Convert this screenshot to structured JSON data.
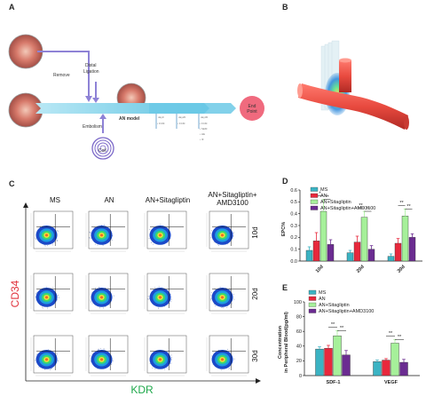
{
  "panels": {
    "a": "A",
    "b": "B",
    "c": "C",
    "d": "D",
    "e": "E"
  },
  "panel_a": {
    "remove": "Remove",
    "distal": "Distal",
    "ligation": "Ligation",
    "embolism": "Embolism",
    "coil": "Coil",
    "an_model": "AN model",
    "end": "End",
    "point": "Point",
    "day0": "day0",
    "day20": "day20",
    "day30": "day30",
    "d0_items": [
      "FCM"
    ],
    "d20_items": [
      "FCM"
    ],
    "d30_items": [
      "FCM",
      "SEM",
      "HE",
      "IF"
    ],
    "colors": {
      "arrow": "#7FD0E8",
      "end": "#F06A7E",
      "coil": "#7B68C8"
    }
  },
  "panel_c": {
    "cols": [
      "MS",
      "AN",
      "AN+Sitagliptin",
      "AN+Sitagliptin+\nAMD3100"
    ],
    "col4_line1": "AN+Sitagliptin+",
    "col4_line2": "AMD3100",
    "rows": [
      "10d",
      "20d",
      "30d"
    ],
    "ylabel": "CD34",
    "xlabel": "KDR",
    "colors": {
      "ylabel": "#E0303A",
      "xlabel": "#1EA84A"
    }
  },
  "chart_data": [
    {
      "type": "bar",
      "ylabel": "EPC%",
      "ylim": [
        0,
        0.6
      ],
      "yticks": [
        "0.0",
        "0.1",
        "0.2",
        "0.3",
        "0.4",
        "0.5",
        "0.6"
      ],
      "categories": [
        "10d",
        "20d",
        "30d"
      ],
      "series": [
        {
          "name": "MS",
          "color": "#3BB3C3",
          "values": [
            0.09,
            0.07,
            0.04
          ],
          "err": [
            0.03,
            0.02,
            0.02
          ]
        },
        {
          "name": "AN",
          "color": "#E8283C",
          "values": [
            0.17,
            0.16,
            0.15
          ],
          "err": [
            0.07,
            0.05,
            0.04
          ]
        },
        {
          "name": "AN+Sitagliptin",
          "color": "#A6F09A",
          "values": [
            0.42,
            0.37,
            0.38
          ],
          "err": [
            0.1,
            0.05,
            0.06
          ]
        },
        {
          "name": "AN+Sitagliptin+AMD3100",
          "color": "#6B2C91",
          "values": [
            0.14,
            0.1,
            0.2
          ],
          "err": [
            0.04,
            0.03,
            0.03
          ]
        }
      ],
      "sig": [
        {
          "cat": 0,
          "from": 1,
          "to": 2,
          "label": "*"
        },
        {
          "cat": 0,
          "from": 2,
          "to": 3,
          "label": "**"
        },
        {
          "cat": 1,
          "from": 1,
          "to": 2,
          "label": "**"
        },
        {
          "cat": 1,
          "from": 2,
          "to": 3,
          "label": "**"
        },
        {
          "cat": 2,
          "from": 1,
          "to": 2,
          "label": "**"
        },
        {
          "cat": 2,
          "from": 2,
          "to": 3,
          "label": "**"
        }
      ],
      "legend": "top-left"
    },
    {
      "type": "bar",
      "ylabel": "Concentration\nin Peripheral Blood(pg/ml)",
      "ylabel_line1": "Concentration",
      "ylabel_line2": "in Peripheral Blood(pg/ml)",
      "ylim": [
        0,
        100
      ],
      "yticks": [
        "0",
        "20",
        "40",
        "60",
        "80",
        "100"
      ],
      "categories": [
        "SDF-1",
        "VEGF"
      ],
      "series": [
        {
          "name": "MS",
          "color": "#3BB3C3",
          "values": [
            36,
            19
          ],
          "err": [
            3,
            2
          ]
        },
        {
          "name": "AN",
          "color": "#E8283C",
          "values": [
            37,
            21
          ],
          "err": [
            4,
            2
          ]
        },
        {
          "name": "AN+Sitagliptin",
          "color": "#A6F09A",
          "values": [
            54,
            44
          ],
          "err": [
            7,
            5
          ]
        },
        {
          "name": "AN+Sitagliptin+AMD3100",
          "color": "#6B2C91",
          "values": [
            28,
            18
          ],
          "err": [
            6,
            4
          ]
        }
      ],
      "sig": [
        {
          "cat": 0,
          "from": 1,
          "to": 2,
          "label": "**"
        },
        {
          "cat": 0,
          "from": 2,
          "to": 3,
          "label": "**"
        },
        {
          "cat": 1,
          "from": 1,
          "to": 2,
          "label": "**"
        },
        {
          "cat": 1,
          "from": 2,
          "to": 3,
          "label": "**"
        }
      ],
      "legend": "top-left"
    }
  ]
}
